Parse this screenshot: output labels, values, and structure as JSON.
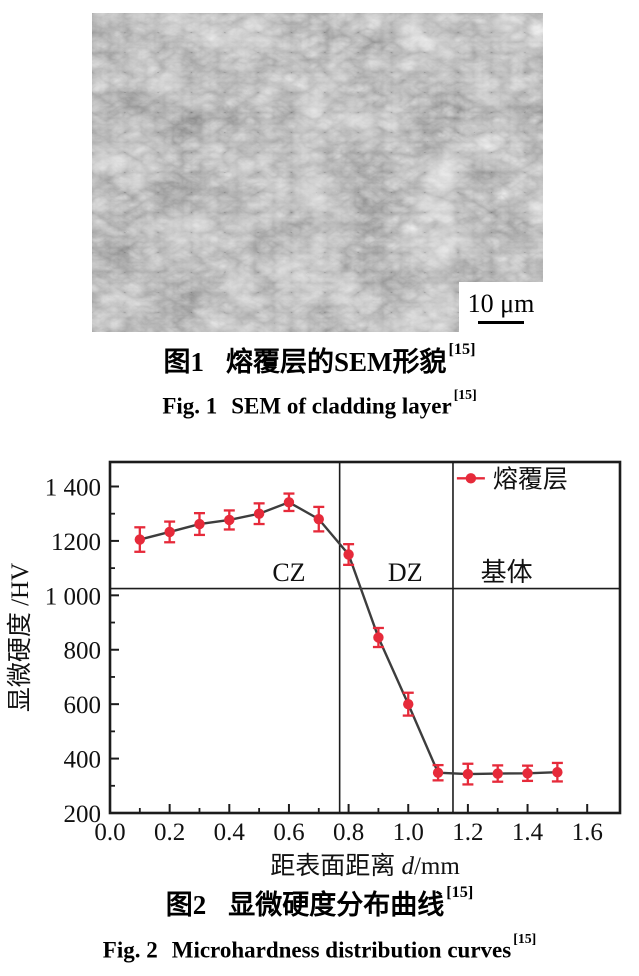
{
  "figure1": {
    "scale_bar_label": "10 μm",
    "caption_zh": {
      "label": "图1",
      "title": "熔覆层的SEM形貌",
      "ref": "[15]"
    },
    "caption_en": {
      "label": "Fig. 1",
      "title": "SEM of cladding layer",
      "ref": "[15]"
    }
  },
  "figure2": {
    "caption_zh": {
      "label": "图2",
      "title": "显微硬度分布曲线",
      "ref": "[15]"
    },
    "caption_en": {
      "label": "Fig. 2",
      "title": "Microhardness distribution curves",
      "ref": "[15]"
    }
  },
  "chart_data": {
    "type": "line",
    "title": "",
    "xlabel_prefix": "距表面距离 ",
    "xlabel_symbol": "d",
    "xlabel_suffix": "/mm",
    "ylabel": "显微硬度 /HV",
    "xlim": [
      0,
      1.71
    ],
    "ylim": [
      200,
      1490
    ],
    "grid": false,
    "x_major_ticks": [
      0,
      0.2,
      0.4,
      0.6,
      0.8,
      1.0,
      1.2,
      1.4,
      1.6
    ],
    "x_tick_labels": [
      "0.0",
      "0.2",
      "0.4",
      "0.6",
      "0.8",
      "1.0",
      "1.2",
      "1.4",
      "1.6"
    ],
    "x_minor_ticks": [
      0.1,
      0.3,
      0.5,
      0.7,
      0.9,
      1.1,
      1.3,
      1.5
    ],
    "y_major_ticks": [
      200,
      400,
      600,
      800,
      1000,
      1200,
      1400
    ],
    "y_tick_labels": [
      "200",
      "400",
      "600",
      "800",
      "1 000",
      "1200",
      "1 400"
    ],
    "y_minor_ticks": [
      300,
      500,
      700,
      900,
      1100,
      1300
    ],
    "series": [
      {
        "name": "熔覆层",
        "marker_color": "#e62a3a",
        "line_color": "#3d3d3d",
        "x": [
          0.1,
          0.2,
          0.3,
          0.4,
          0.5,
          0.6,
          0.7,
          0.8,
          0.9,
          1.0,
          1.1,
          1.2,
          1.3,
          1.4,
          1.5
        ],
        "y": [
          1205,
          1233,
          1262,
          1277,
          1300,
          1342,
          1280,
          1150,
          845,
          600,
          348,
          343,
          345,
          346,
          350
        ],
        "yerr": [
          45,
          38,
          40,
          35,
          38,
          32,
          45,
          38,
          35,
          42,
          28,
          38,
          30,
          28,
          34
        ]
      }
    ],
    "zone_divider_x": [
      0.77,
      1.15
    ],
    "threshold_line_y": 1025,
    "zone_labels": [
      {
        "text": "CZ",
        "x": 0.6,
        "y": 1085
      },
      {
        "text": "DZ",
        "x": 0.99,
        "y": 1085
      },
      {
        "text": "基体",
        "x": 1.33,
        "y": 1085
      }
    ],
    "legend": {
      "label": "熔覆层",
      "position": "top-right-inside",
      "x": 1.21,
      "y": 1430
    }
  }
}
